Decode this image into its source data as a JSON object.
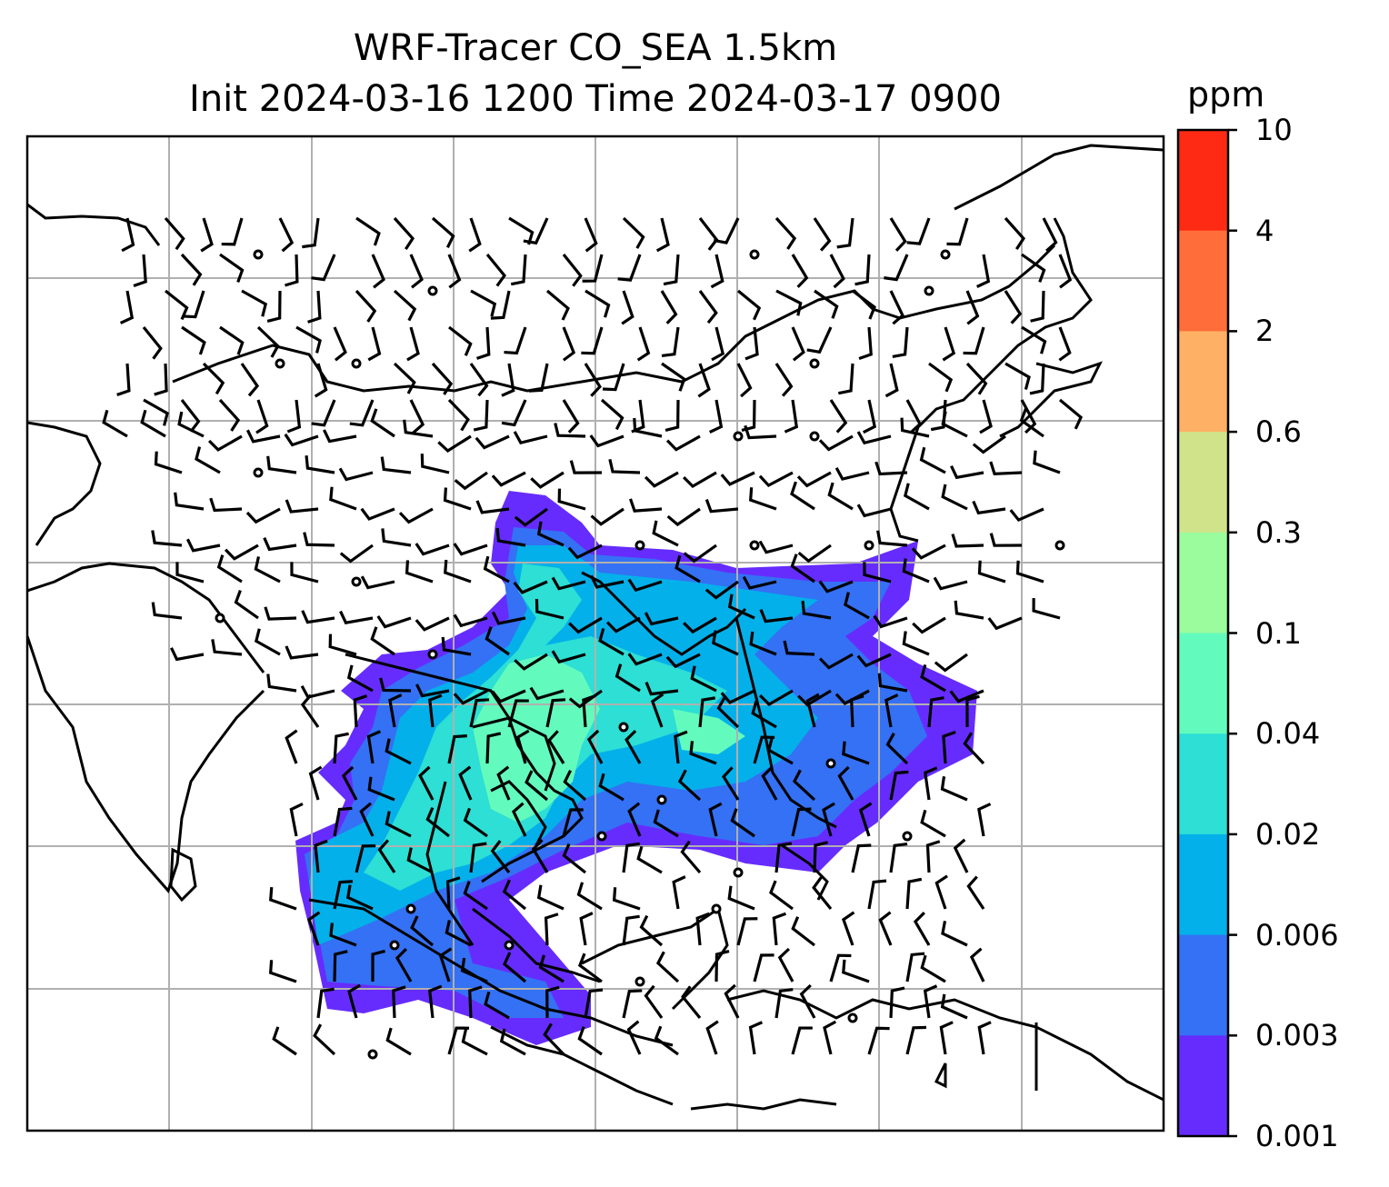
{
  "title": {
    "line1": "WRF-Tracer CO_SEA 1.5km",
    "line2": "Init 2024-03-16 1200 Time 2024-03-17 0900"
  },
  "colorbar": {
    "unit": "ppm",
    "ticks": [
      "10",
      "4",
      "2",
      "0.6",
      "0.3",
      "0.1",
      "0.04",
      "0.02",
      "0.006",
      "0.003",
      "0.001"
    ],
    "bands": [
      "#ff2a14",
      "#ff6d3a",
      "#feb064",
      "#d1e38a",
      "#9afc9c",
      "#63fbbd",
      "#2ddfd4",
      "#04b0ea",
      "#3471f4",
      "#662cfd"
    ]
  },
  "colors": {
    "coast": "#000000",
    "grid": "#b0b0b0",
    "barb": "#000000"
  },
  "map": {
    "gridlines": true,
    "field": "CO tracer concentration",
    "overlay": "wind barbs"
  }
}
